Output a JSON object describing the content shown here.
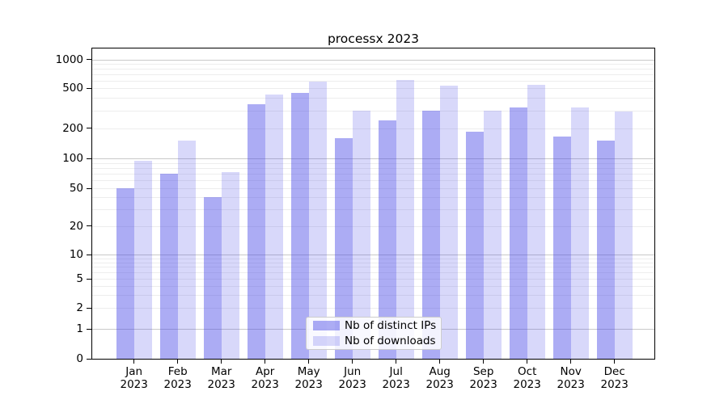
{
  "chart_data": {
    "type": "bar",
    "title": "processx 2023",
    "categories": [
      {
        "month": "Jan",
        "year": "2023"
      },
      {
        "month": "Feb",
        "year": "2023"
      },
      {
        "month": "Mar",
        "year": "2023"
      },
      {
        "month": "Apr",
        "year": "2023"
      },
      {
        "month": "May",
        "year": "2023"
      },
      {
        "month": "Jun",
        "year": "2023"
      },
      {
        "month": "Jul",
        "year": "2023"
      },
      {
        "month": "Aug",
        "year": "2023"
      },
      {
        "month": "Sep",
        "year": "2023"
      },
      {
        "month": "Oct",
        "year": "2023"
      },
      {
        "month": "Nov",
        "year": "2023"
      },
      {
        "month": "Dec",
        "year": "2023"
      }
    ],
    "series": [
      {
        "name": "Nb of distinct IPs",
        "color": "rgba(70,70,230,0.45)",
        "values": [
          50,
          70,
          40,
          345,
          450,
          160,
          240,
          300,
          185,
          320,
          165,
          150
        ]
      },
      {
        "name": "Nb of downloads",
        "color": "rgba(70,70,230,0.21)",
        "values": [
          95,
          150,
          73,
          430,
          590,
          300,
          610,
          535,
          300,
          540,
          320,
          290
        ]
      }
    ],
    "y_ticks": [
      0,
      1,
      2,
      5,
      10,
      20,
      50,
      100,
      200,
      500,
      1000
    ],
    "y_scale": "log",
    "ylim": [
      0,
      1300
    ],
    "xlabel": "",
    "ylabel": "",
    "grid": "horizontal major and minor gridlines",
    "legend_position": "lower center",
    "grid_major_color": "#c9c9c9",
    "grid_minor_color": "#ededed",
    "axis_color": "#000000"
  }
}
